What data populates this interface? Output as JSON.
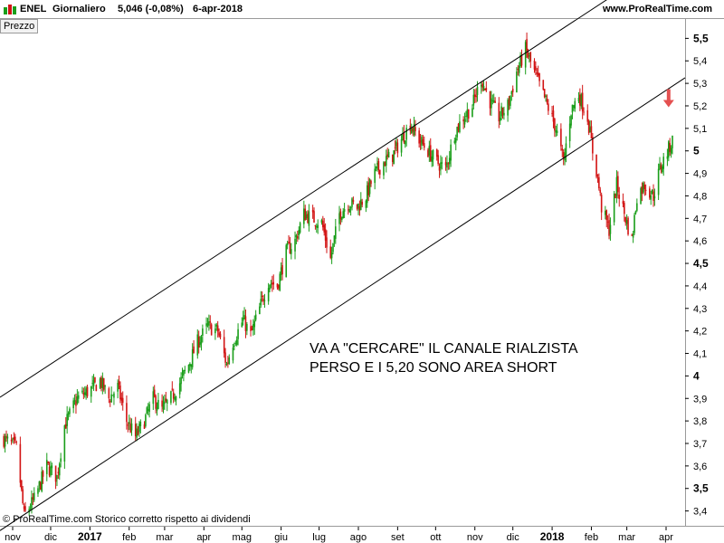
{
  "header": {
    "symbol": "ENEL",
    "period": "Giornaliero",
    "quote": "5,046 (-0,08%)",
    "date": "6-apr-2018",
    "site": "www.ProRealTime.com"
  },
  "panel_label": "Prezzo",
  "footer": "© ProRealTime.com  Storico corretto rispetto ai dividendi",
  "colors": {
    "up": "#1a9e1a",
    "down": "#d21414",
    "line": "#000000",
    "arrow": "#e45050"
  },
  "chart_data": {
    "type": "candlestick",
    "y_ticks": [
      {
        "value": 3.4,
        "label": "3,4"
      },
      {
        "value": 3.5,
        "label": "3,5"
      },
      {
        "value": 3.6,
        "label": "3,6"
      },
      {
        "value": 3.7,
        "label": "3,7"
      },
      {
        "value": 3.8,
        "label": "3,8"
      },
      {
        "value": 3.9,
        "label": "3,9"
      },
      {
        "value": 4.0,
        "label": "4"
      },
      {
        "value": 4.1,
        "label": "4,1"
      },
      {
        "value": 4.2,
        "label": "4,2"
      },
      {
        "value": 4.3,
        "label": "4,3"
      },
      {
        "value": 4.4,
        "label": "4,4"
      },
      {
        "value": 4.5,
        "label": "4,5"
      },
      {
        "value": 4.6,
        "label": "4,6"
      },
      {
        "value": 4.7,
        "label": "4,7"
      },
      {
        "value": 4.8,
        "label": "4,8"
      },
      {
        "value": 4.9,
        "label": "4,9"
      },
      {
        "value": 5.0,
        "label": "5"
      },
      {
        "value": 5.1,
        "label": "5,1"
      },
      {
        "value": 5.2,
        "label": "5,2"
      },
      {
        "value": 5.3,
        "label": "5,3"
      },
      {
        "value": 5.4,
        "label": "5,4"
      },
      {
        "value": 5.5,
        "label": "5,5"
      }
    ],
    "bold_ticks": [
      "3,5",
      "4",
      "4,5",
      "5",
      "5,5"
    ],
    "ylim": [
      3.33,
      5.59
    ],
    "x_labels": [
      {
        "label": "nov",
        "date": "2016-11-01"
      },
      {
        "label": "dic",
        "date": "2016-12-01"
      },
      {
        "label": "2017",
        "date": "2017-01-01"
      },
      {
        "label": "feb",
        "date": "2017-02-01"
      },
      {
        "label": "mar",
        "date": "2017-03-01"
      },
      {
        "label": "apr",
        "date": "2017-04-01"
      },
      {
        "label": "mag",
        "date": "2017-05-01"
      },
      {
        "label": "giu",
        "date": "2017-06-01"
      },
      {
        "label": "lug",
        "date": "2017-07-01"
      },
      {
        "label": "ago",
        "date": "2017-08-01"
      },
      {
        "label": "set",
        "date": "2017-09-01"
      },
      {
        "label": "ott",
        "date": "2017-10-01"
      },
      {
        "label": "nov",
        "date": "2017-11-01"
      },
      {
        "label": "dic",
        "date": "2017-12-01"
      },
      {
        "label": "2018",
        "date": "2018-01-01"
      },
      {
        "label": "feb",
        "date": "2018-02-01"
      },
      {
        "label": "mar",
        "date": "2018-03-01"
      },
      {
        "label": "apr",
        "date": "2018-04-01"
      }
    ],
    "bold_x_labels": [
      "2017",
      "2018"
    ],
    "price_path": [
      [
        "2016-10-25",
        3.72
      ],
      [
        "2016-11-04",
        3.68
      ],
      [
        "2016-11-10",
        3.38
      ],
      [
        "2016-11-18",
        3.45
      ],
      [
        "2016-11-28",
        3.6
      ],
      [
        "2016-12-06",
        3.55
      ],
      [
        "2016-12-12",
        3.78
      ],
      [
        "2016-12-22",
        3.9
      ],
      [
        "2017-01-04",
        3.95
      ],
      [
        "2017-01-09",
        3.98
      ],
      [
        "2017-01-16",
        3.9
      ],
      [
        "2017-01-23",
        3.95
      ],
      [
        "2017-01-30",
        3.8
      ],
      [
        "2017-02-06",
        3.73
      ],
      [
        "2017-02-13",
        3.8
      ],
      [
        "2017-02-20",
        3.9
      ],
      [
        "2017-02-27",
        3.85
      ],
      [
        "2017-03-06",
        3.9
      ],
      [
        "2017-03-13",
        3.97
      ],
      [
        "2017-03-20",
        4.05
      ],
      [
        "2017-03-27",
        4.15
      ],
      [
        "2017-04-04",
        4.22
      ],
      [
        "2017-04-12",
        4.2
      ],
      [
        "2017-04-19",
        4.05
      ],
      [
        "2017-04-24",
        4.15
      ],
      [
        "2017-05-02",
        4.25
      ],
      [
        "2017-05-08",
        4.18
      ],
      [
        "2017-05-15",
        4.3
      ],
      [
        "2017-05-22",
        4.42
      ],
      [
        "2017-05-29",
        4.4
      ],
      [
        "2017-06-05",
        4.55
      ],
      [
        "2017-06-12",
        4.6
      ],
      [
        "2017-06-19",
        4.72
      ],
      [
        "2017-06-26",
        4.7
      ],
      [
        "2017-07-03",
        4.68
      ],
      [
        "2017-07-10",
        4.52
      ],
      [
        "2017-07-17",
        4.72
      ],
      [
        "2017-07-24",
        4.77
      ],
      [
        "2017-07-31",
        4.75
      ],
      [
        "2017-08-07",
        4.8
      ],
      [
        "2017-08-14",
        4.9
      ],
      [
        "2017-08-21",
        4.95
      ],
      [
        "2017-08-28",
        4.98
      ],
      [
        "2017-09-04",
        5.05
      ],
      [
        "2017-09-11",
        5.12
      ],
      [
        "2017-09-18",
        5.05
      ],
      [
        "2017-09-25",
        5.0
      ],
      [
        "2017-10-02",
        4.95
      ],
      [
        "2017-10-09",
        4.92
      ],
      [
        "2017-10-16",
        5.08
      ],
      [
        "2017-10-23",
        5.15
      ],
      [
        "2017-10-30",
        5.2
      ],
      [
        "2017-11-06",
        5.32
      ],
      [
        "2017-11-13",
        5.22
      ],
      [
        "2017-11-20",
        5.15
      ],
      [
        "2017-11-27",
        5.2
      ],
      [
        "2017-12-04",
        5.35
      ],
      [
        "2017-12-11",
        5.45
      ],
      [
        "2017-12-18",
        5.35
      ],
      [
        "2017-12-27",
        5.22
      ],
      [
        "2018-01-04",
        5.1
      ],
      [
        "2018-01-10",
        4.95
      ],
      [
        "2018-01-16",
        5.18
      ],
      [
        "2018-01-22",
        5.25
      ],
      [
        "2018-01-29",
        5.15
      ],
      [
        "2018-02-02",
        5.0
      ],
      [
        "2018-02-06",
        4.88
      ],
      [
        "2018-02-09",
        4.75
      ],
      [
        "2018-02-15",
        4.65
      ],
      [
        "2018-02-21",
        4.85
      ],
      [
        "2018-02-28",
        4.7
      ],
      [
        "2018-03-05",
        4.6
      ],
      [
        "2018-03-09",
        4.8
      ],
      [
        "2018-03-15",
        4.85
      ],
      [
        "2018-03-22",
        4.8
      ],
      [
        "2018-03-27",
        4.92
      ],
      [
        "2018-04-06",
        5.046
      ]
    ],
    "upper_channel": [
      [
        "2016-10-22",
        3.905
      ],
      [
        "2018-01-22",
        5.59
      ]
    ],
    "lower_channel": [
      [
        "2016-11-01",
        3.35
      ],
      [
        "2018-04-12",
        5.31
      ]
    ],
    "annotation": [
      "VA A \"CERCARE\" IL CANALE RIALZISTA",
      "PERSO E I 5,20 SONO AREA SHORT"
    ],
    "arrow_marker": {
      "date": "2018-04-03",
      "price": 5.25
    }
  }
}
